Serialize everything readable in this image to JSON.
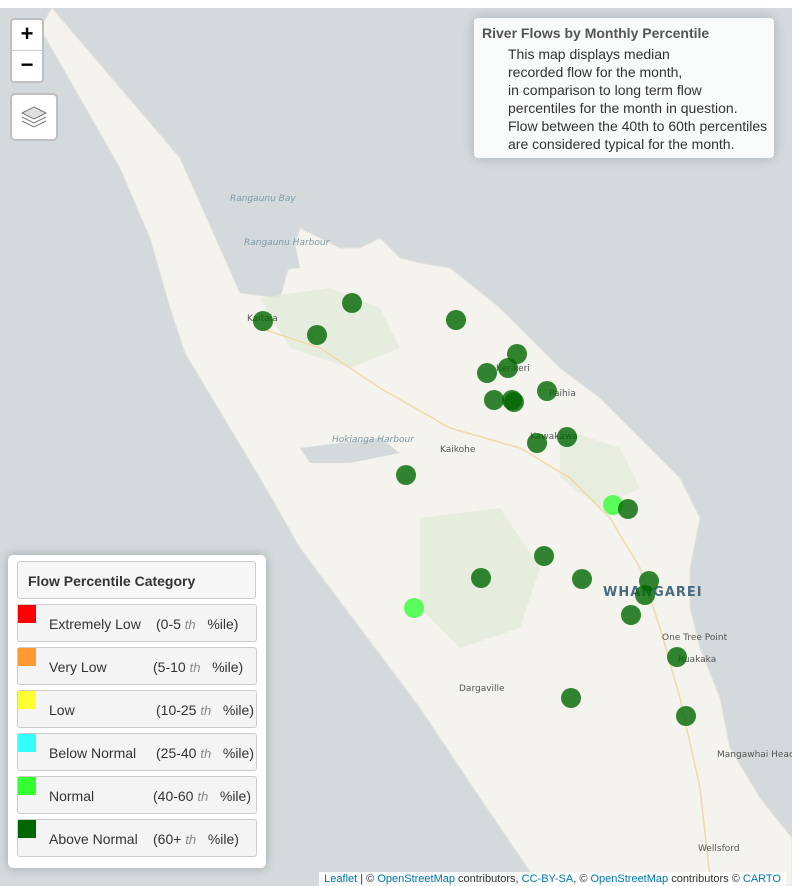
{
  "map": {
    "zoom_in": "+",
    "zoom_out": "−",
    "layers_icon": "layers-icon",
    "places": [
      {
        "name": "Rangaunu Bay",
        "kind": "water"
      },
      {
        "name": "Rangaunu Harbour",
        "kind": "water"
      },
      {
        "name": "Kaitaia",
        "kind": "town"
      },
      {
        "name": "Kerikeri",
        "kind": "town"
      },
      {
        "name": "Paihia",
        "kind": "town"
      },
      {
        "name": "Hokianga Harbour",
        "kind": "water"
      },
      {
        "name": "Kaikohe",
        "kind": "town"
      },
      {
        "name": "Kawakawa",
        "kind": "town"
      },
      {
        "name": "WHANGAREI",
        "kind": "city"
      },
      {
        "name": "One Tree Point",
        "kind": "town"
      },
      {
        "name": "Ruakaka",
        "kind": "town"
      },
      {
        "name": "Dargaville",
        "kind": "town"
      },
      {
        "name": "Mangawhai Heads",
        "kind": "town"
      },
      {
        "name": "Wellsford",
        "kind": "town"
      }
    ]
  },
  "info": {
    "title": "River Flows by Monthly Percentile",
    "lines": [
      "This map displays median",
      "recorded flow for the month,",
      "in comparison to long term flow",
      "percentiles for the month in question.",
      "Flow between the 40th to 60th percentiles",
      "are considered typical for the month."
    ]
  },
  "legend": {
    "title": "Flow Percentile Category",
    "items": [
      {
        "label": "Extremely Low",
        "range_a": "(0-5",
        "th": "th",
        "range_b": "%ile)",
        "color": "#ff0000"
      },
      {
        "label": "Very Low",
        "range_a": "(5-10",
        "th": "th",
        "range_b": "%ile)",
        "color": "#ff9933"
      },
      {
        "label": "Low",
        "range_a": "(10-25",
        "th": "th",
        "range_b": "%ile)",
        "color": "#ffff33"
      },
      {
        "label": "Below Normal",
        "range_a": "(25-40",
        "th": "th",
        "range_b": "%ile)",
        "color": "#33ffff"
      },
      {
        "label": "Normal",
        "range_a": "(40-60",
        "th": "th",
        "range_b": "%ile)",
        "color": "#33ff33"
      },
      {
        "label": "Above Normal",
        "range_a": "(60+",
        "th": "th",
        "range_b": "%ile)",
        "color": "#006600"
      }
    ]
  },
  "sites": [
    {
      "category": "Above Normal"
    },
    {
      "category": "Above Normal"
    },
    {
      "category": "Above Normal"
    },
    {
      "category": "Above Normal"
    },
    {
      "category": "Above Normal"
    },
    {
      "category": "Above Normal"
    },
    {
      "category": "Above Normal"
    },
    {
      "category": "Above Normal"
    },
    {
      "category": "Above Normal"
    },
    {
      "category": "Above Normal"
    },
    {
      "category": "Above Normal"
    },
    {
      "category": "Above Normal"
    },
    {
      "category": "Above Normal"
    },
    {
      "category": "Above Normal"
    },
    {
      "category": "Normal"
    },
    {
      "category": "Above Normal"
    },
    {
      "category": "Above Normal"
    },
    {
      "category": "Above Normal"
    },
    {
      "category": "Above Normal"
    },
    {
      "category": "Above Normal"
    },
    {
      "category": "Normal"
    },
    {
      "category": "Above Normal"
    },
    {
      "category": "Above Normal"
    },
    {
      "category": "Above Normal"
    },
    {
      "category": "Above Normal"
    },
    {
      "category": "Above Normal"
    }
  ],
  "attribution": {
    "leaflet": "Leaflet",
    "sep1": " | © ",
    "osm1": "OpenStreetMap",
    "contrib1": " contributors, ",
    "ccbysa": "CC-BY-SA",
    "sep2": ", © ",
    "osm2": "OpenStreetMap",
    "contrib2": " contributors © ",
    "carto": "CARTO"
  }
}
